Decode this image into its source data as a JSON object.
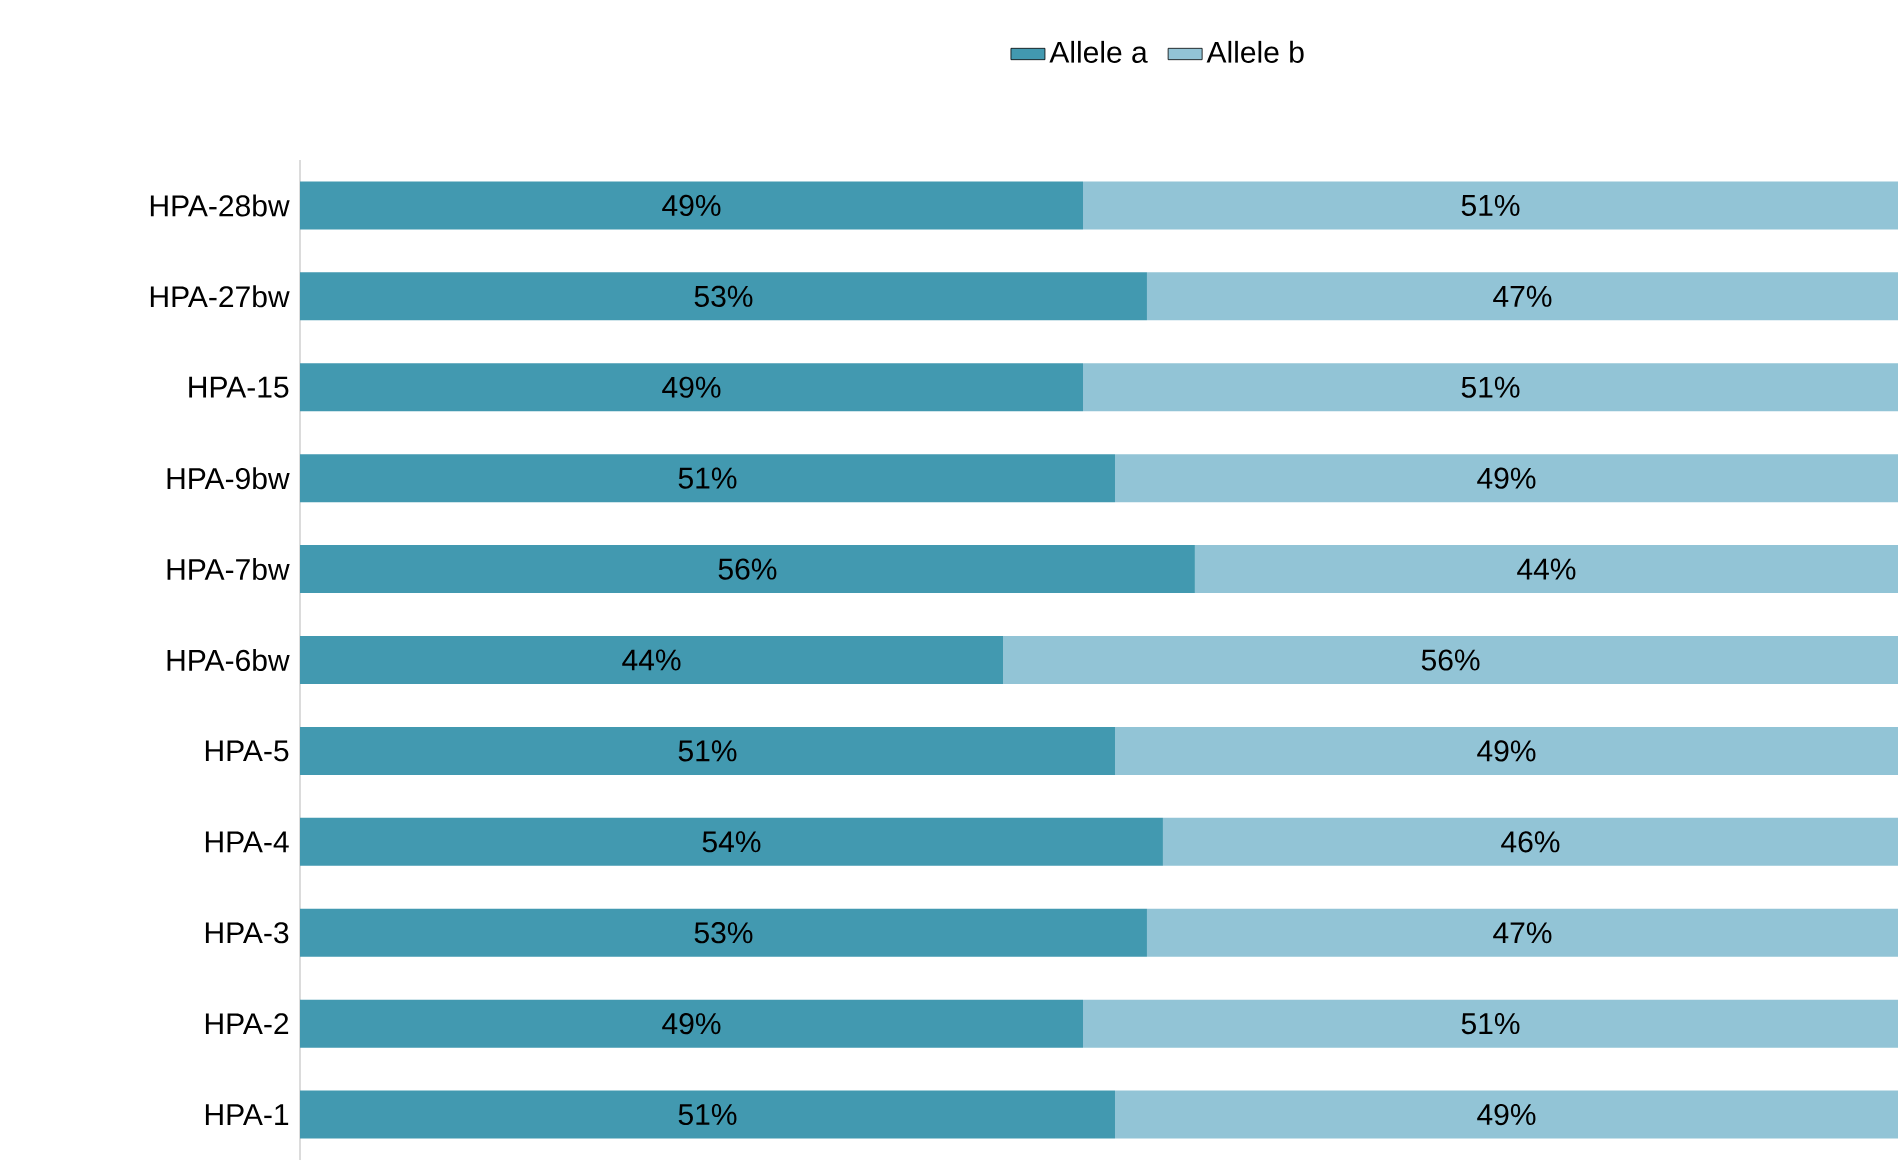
{
  "chart_data": {
    "type": "bar",
    "orientation": "horizontal",
    "stacked": true,
    "categories": [
      "HPA-28bw",
      "HPA-27bw",
      "HPA-15",
      "HPA-9bw",
      "HPA-7bw",
      "HPA-6bw",
      "HPA-5",
      "HPA-4",
      "HPA-3",
      "HPA-2",
      "HPA-1"
    ],
    "series": [
      {
        "name": "Allele a",
        "color": "#4299b0",
        "values": [
          49,
          53,
          49,
          51,
          56,
          44,
          51,
          54,
          53,
          49,
          51
        ],
        "value_labels": [
          "49%",
          "53%",
          "49%",
          "51%",
          "56%",
          "44%",
          "51%",
          "54%",
          "53%",
          "49%",
          "51%"
        ]
      },
      {
        "name": "Allele b",
        "color": "#92c4d6",
        "values": [
          51,
          47,
          51,
          49,
          44,
          56,
          49,
          46,
          47,
          51,
          49
        ],
        "value_labels": [
          "51%",
          "47%",
          "51%",
          "49%",
          "44%",
          "56%",
          "49%",
          "46%",
          "47%",
          "51%",
          "49%"
        ]
      }
    ],
    "xlim": [
      0,
      100
    ],
    "tick_labels": "y",
    "legend": "top"
  }
}
